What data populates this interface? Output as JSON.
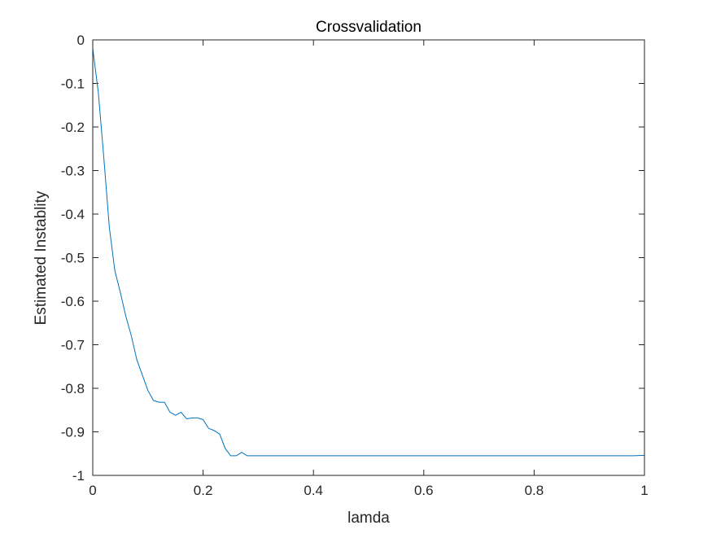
{
  "chart_data": {
    "type": "line",
    "title": "Crossvalidation",
    "xlabel": "lamda",
    "ylabel": "Estimated Instablity",
    "xlim": [
      0,
      1
    ],
    "ylim": [
      -1,
      0
    ],
    "xticks": [
      "0",
      "0.2",
      "0.4",
      "0.6",
      "0.8",
      "1"
    ],
    "yticks": [
      "0",
      "-0.1",
      "-0.2",
      "-0.3",
      "-0.4",
      "-0.5",
      "-0.6",
      "-0.7",
      "-0.8",
      "-0.9",
      "-1"
    ],
    "grid": false,
    "line_color": "#0072BD",
    "series": [
      {
        "x": [
          0,
          0.01,
          0.02,
          0.03,
          0.04,
          0.05,
          0.06,
          0.07,
          0.08,
          0.09,
          0.1,
          0.11,
          0.12,
          0.13,
          0.14,
          0.15,
          0.16,
          0.17,
          0.18,
          0.19,
          0.2,
          0.21,
          0.22,
          0.23,
          0.24,
          0.25,
          0.26,
          0.27,
          0.28,
          0.3,
          0.4,
          0.5,
          0.6,
          0.7,
          0.8,
          0.9,
          0.98,
          1.0
        ],
        "y": [
          -0.02,
          -0.12,
          -0.27,
          -0.43,
          -0.53,
          -0.58,
          -0.635,
          -0.68,
          -0.735,
          -0.77,
          -0.805,
          -0.828,
          -0.832,
          -0.832,
          -0.855,
          -0.862,
          -0.855,
          -0.87,
          -0.868,
          -0.868,
          -0.872,
          -0.892,
          -0.897,
          -0.905,
          -0.938,
          -0.955,
          -0.955,
          -0.947,
          -0.955,
          -0.955,
          -0.955,
          -0.955,
          -0.955,
          -0.955,
          -0.955,
          -0.955,
          -0.955,
          -0.954
        ]
      }
    ]
  }
}
